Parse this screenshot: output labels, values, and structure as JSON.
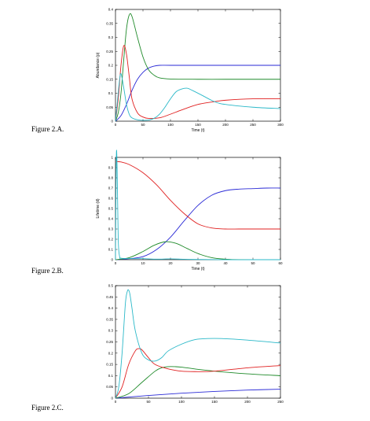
{
  "captions": [
    "Figure 2.A.",
    "Figure 2.B.",
    "Figure 2.C."
  ],
  "chart_data": [
    {
      "type": "line",
      "title": "",
      "xlabel": "Time (t)",
      "ylabel": "Abundance (p)",
      "xlim": [
        0,
        300
      ],
      "ylim": [
        0,
        0.4
      ],
      "xticks": [
        0,
        50,
        100,
        150,
        200,
        250,
        300
      ],
      "yticks": [
        0,
        0.05,
        0.1,
        0.15,
        0.2,
        0.25,
        0.3,
        0.35,
        0.4
      ],
      "xtick_labels": [
        "0",
        "50",
        "100",
        "150",
        "200",
        "250",
        "300"
      ],
      "ytick_labels": [
        "0",
        "0.05",
        "0.1",
        "0.15",
        "0.2",
        "0.25",
        "0.3",
        "0.35",
        "0.4"
      ],
      "series": [
        {
          "color": "#2a2ad6",
          "x": [
            0,
            10,
            20,
            30,
            40,
            50,
            60,
            70,
            80,
            100,
            150,
            200,
            250,
            300
          ],
          "y": [
            0,
            0.02,
            0.06,
            0.11,
            0.15,
            0.175,
            0.19,
            0.197,
            0.2,
            0.2,
            0.2,
            0.2,
            0.2,
            0.2
          ]
        },
        {
          "color": "#1f8a2a",
          "x": [
            0,
            5,
            10,
            15,
            20,
            25,
            30,
            40,
            50,
            60,
            70,
            80,
            100,
            150,
            200,
            250,
            300
          ],
          "y": [
            0,
            0.03,
            0.1,
            0.22,
            0.33,
            0.38,
            0.375,
            0.3,
            0.23,
            0.185,
            0.165,
            0.155,
            0.151,
            0.15,
            0.15,
            0.15,
            0.15
          ]
        },
        {
          "color": "#e02020",
          "x": [
            0,
            5,
            10,
            15,
            20,
            25,
            30,
            40,
            50,
            60,
            80,
            100,
            120,
            150,
            180,
            200,
            250,
            300
          ],
          "y": [
            0,
            0.08,
            0.2,
            0.27,
            0.24,
            0.16,
            0.08,
            0.03,
            0.015,
            0.01,
            0.012,
            0.025,
            0.04,
            0.06,
            0.07,
            0.075,
            0.08,
            0.08
          ]
        },
        {
          "color": "#2ab8c8",
          "x": [
            0,
            3,
            7,
            10,
            15,
            20,
            25,
            30,
            40,
            50,
            60,
            70,
            80,
            90,
            100,
            110,
            120,
            130,
            140,
            160,
            180,
            200,
            250,
            300
          ],
          "y": [
            0,
            0.06,
            0.14,
            0.17,
            0.12,
            0.06,
            0.025,
            0.012,
            0.005,
            0.003,
            0.004,
            0.01,
            0.025,
            0.05,
            0.08,
            0.105,
            0.115,
            0.118,
            0.11,
            0.09,
            0.07,
            0.06,
            0.05,
            0.045
          ]
        }
      ]
    },
    {
      "type": "line",
      "title": "",
      "xlabel": "Time (t)",
      "ylabel": "Lifetime (d)",
      "xlim": [
        0,
        60
      ],
      "ylim": [
        0,
        1
      ],
      "xticks": [
        0,
        10,
        20,
        30,
        40,
        50,
        60
      ],
      "yticks": [
        0,
        0.1,
        0.2,
        0.3,
        0.4,
        0.5,
        0.6,
        0.7,
        0.8,
        0.9,
        1
      ],
      "xtick_labels": [
        "0",
        "10",
        "20",
        "30",
        "40",
        "50",
        "60"
      ],
      "ytick_labels": [
        "0",
        "0.1",
        "0.2",
        "0.3",
        "0.4",
        "0.5",
        "0.6",
        "0.7",
        "0.8",
        "0.9",
        "1"
      ],
      "series": [
        {
          "color": "#2a2ad6",
          "x": [
            0,
            5,
            10,
            15,
            20,
            25,
            30,
            35,
            40,
            45,
            50,
            55,
            60
          ],
          "y": [
            0,
            0.01,
            0.03,
            0.1,
            0.22,
            0.38,
            0.53,
            0.63,
            0.675,
            0.69,
            0.695,
            0.7,
            0.7
          ]
        },
        {
          "color": "#e02020",
          "x": [
            0,
            2,
            5,
            10,
            15,
            20,
            25,
            30,
            35,
            40,
            45,
            50,
            55,
            60
          ],
          "y": [
            0.96,
            0.955,
            0.93,
            0.85,
            0.73,
            0.58,
            0.45,
            0.35,
            0.31,
            0.3,
            0.3,
            0.3,
            0.3,
            0.3
          ]
        },
        {
          "color": "#1f8a2a",
          "x": [
            0,
            5,
            10,
            14,
            18,
            22,
            26,
            30,
            35,
            40,
            45,
            60
          ],
          "y": [
            0,
            0.02,
            0.08,
            0.14,
            0.175,
            0.16,
            0.11,
            0.06,
            0.02,
            0.005,
            0,
            0
          ]
        },
        {
          "color": "#2ab8c8",
          "x": [
            0,
            0.3,
            0.6,
            1,
            1.5,
            2,
            5,
            10,
            15,
            20,
            25,
            30,
            40,
            50,
            60
          ],
          "y": [
            0,
            1.0,
            0.9,
            0.2,
            0.03,
            0.015,
            0.01,
            0.01,
            0.005,
            0.008,
            0.004,
            0.002,
            0,
            0,
            0
          ]
        }
      ]
    },
    {
      "type": "line",
      "title": "",
      "xlabel": "",
      "ylabel": "",
      "xlim": [
        0,
        250
      ],
      "ylim": [
        0,
        0.5
      ],
      "xticks": [
        0,
        50,
        100,
        150,
        200,
        250
      ],
      "yticks": [
        0,
        0.05,
        0.1,
        0.15,
        0.2,
        0.25,
        0.3,
        0.35,
        0.4,
        0.45,
        0.5
      ],
      "xtick_labels": [
        "0",
        "50",
        "100",
        "150",
        "200",
        "250"
      ],
      "ytick_labels": [
        "0",
        "0.05",
        "0.1",
        "0.15",
        "0.2",
        "0.25",
        "0.3",
        "0.35",
        "0.4",
        "0.45",
        "0.5"
      ],
      "series": [
        {
          "color": "#2a2ad6",
          "x": [
            0,
            50,
            100,
            150,
            200,
            250
          ],
          "y": [
            0,
            0.012,
            0.022,
            0.03,
            0.036,
            0.04
          ]
        },
        {
          "color": "#1f8a2a",
          "x": [
            0,
            20,
            40,
            60,
            70,
            80,
            90,
            100,
            120,
            150,
            200,
            250
          ],
          "y": [
            0,
            0.02,
            0.07,
            0.12,
            0.135,
            0.14,
            0.14,
            0.138,
            0.13,
            0.12,
            0.108,
            0.1
          ]
        },
        {
          "color": "#e02020",
          "x": [
            0,
            10,
            20,
            30,
            35,
            40,
            50,
            60,
            80,
            100,
            120,
            150,
            200,
            250
          ],
          "y": [
            0,
            0.05,
            0.15,
            0.21,
            0.22,
            0.215,
            0.18,
            0.15,
            0.13,
            0.12,
            0.118,
            0.12,
            0.135,
            0.145
          ]
        },
        {
          "color": "#2ab8c8",
          "x": [
            0,
            5,
            10,
            15,
            18,
            20,
            22,
            25,
            30,
            40,
            50,
            60,
            70,
            80,
            100,
            120,
            140,
            160,
            200,
            250
          ],
          "y": [
            0,
            0.05,
            0.2,
            0.42,
            0.475,
            0.48,
            0.46,
            0.4,
            0.3,
            0.2,
            0.17,
            0.165,
            0.18,
            0.21,
            0.24,
            0.26,
            0.265,
            0.265,
            0.258,
            0.245
          ]
        }
      ]
    }
  ]
}
